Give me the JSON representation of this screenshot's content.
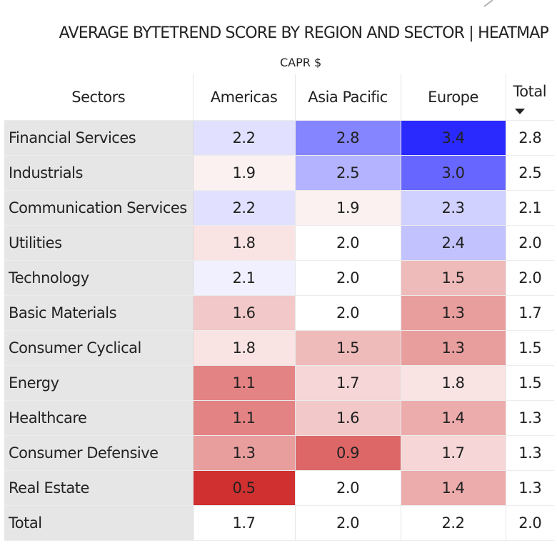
{
  "chart_data": {
    "type": "heatmap",
    "title": "AVERAGE BYTETREND SCORE BY REGION AND SECTOR | HEATMAP",
    "subtitle": "CAPR $",
    "row_header": "Sectors",
    "columns": [
      "Americas",
      "Asia Pacific",
      "Europe"
    ],
    "total_label": "Total",
    "sorted_by": "Total descending",
    "rows": [
      {
        "label": "Financial Services",
        "values": [
          2.2,
          2.8,
          3.4
        ],
        "total": 2.8
      },
      {
        "label": "Industrials",
        "values": [
          1.9,
          2.5,
          3.0
        ],
        "total": 2.5
      },
      {
        "label": "Communication Services",
        "values": [
          2.2,
          1.9,
          2.3
        ],
        "total": 2.1
      },
      {
        "label": "Utilities",
        "values": [
          1.8,
          2.0,
          2.4
        ],
        "total": 2.0
      },
      {
        "label": "Technology",
        "values": [
          2.1,
          2.0,
          1.5
        ],
        "total": 2.0
      },
      {
        "label": "Basic Materials",
        "values": [
          1.6,
          2.0,
          1.3
        ],
        "total": 1.7
      },
      {
        "label": "Consumer Cyclical",
        "values": [
          1.8,
          1.5,
          1.3
        ],
        "total": 1.5
      },
      {
        "label": "Energy",
        "values": [
          1.1,
          1.7,
          1.8
        ],
        "total": 1.5
      },
      {
        "label": "Healthcare",
        "values": [
          1.1,
          1.6,
          1.4
        ],
        "total": 1.3
      },
      {
        "label": "Consumer Defensive",
        "values": [
          1.3,
          0.9,
          1.7
        ],
        "total": 1.3
      },
      {
        "label": "Real Estate",
        "values": [
          0.5,
          2.0,
          1.4
        ],
        "total": 1.3
      }
    ],
    "column_totals": [
      1.7,
      2.0,
      2.2
    ],
    "grand_total": 2.0,
    "color_scale": {
      "low": "#d03030",
      "mid": "#ffffff",
      "high": "#2a2aff",
      "min": 0.5,
      "mid_value": 2.0,
      "max": 3.4
    }
  }
}
